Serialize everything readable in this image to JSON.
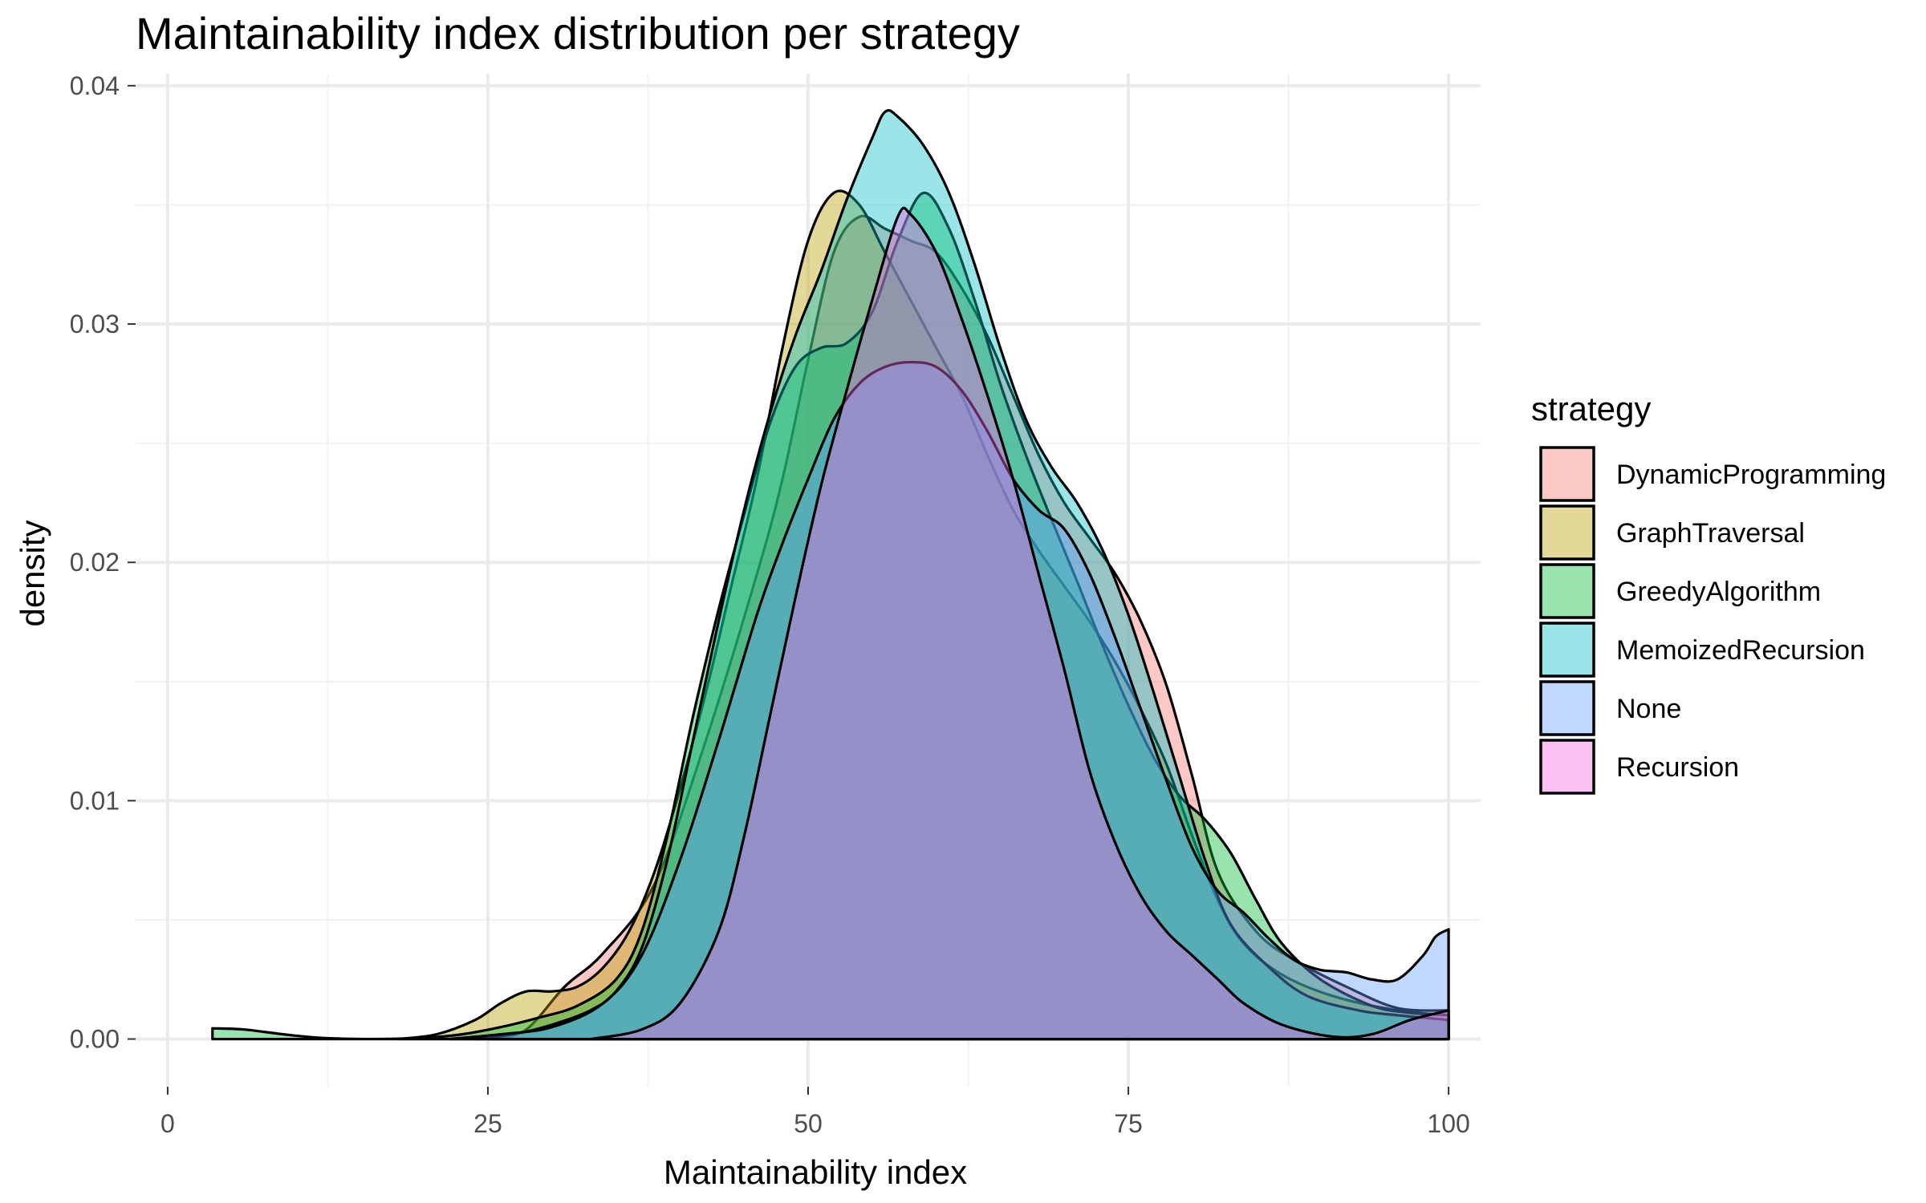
{
  "chart_data": {
    "type": "area",
    "title": "Maintainability index distribution per strategy",
    "xlabel": "Maintainability index",
    "ylabel": "density",
    "xlim": [
      -2.5,
      102.5
    ],
    "ylim": [
      -0.002,
      0.0405
    ],
    "x_ticks": [
      0,
      25,
      50,
      75,
      100
    ],
    "x_tick_labels": [
      "0",
      "25",
      "50",
      "75",
      "100"
    ],
    "y_ticks": [
      0,
      0.01,
      0.02,
      0.03,
      0.04
    ],
    "y_tick_labels": [
      "0.00",
      "0.01",
      "0.02",
      "0.03",
      "0.04"
    ],
    "grid": true,
    "legend": {
      "title": "strategy",
      "position": "right"
    },
    "series": [
      {
        "name": "DynamicProgramming",
        "color": "#F8766D",
        "points": [
          [
            25.4,
            0
          ],
          [
            28,
            0.0004
          ],
          [
            31,
            0.0022
          ],
          [
            34,
            0.0036
          ],
          [
            38,
            0.0065
          ],
          [
            42,
            0.0125
          ],
          [
            46,
            0.0195
          ],
          [
            48,
            0.0235
          ],
          [
            50,
            0.0285
          ],
          [
            52,
            0.033
          ],
          [
            54,
            0.0345
          ],
          [
            56,
            0.034
          ],
          [
            58,
            0.0335
          ],
          [
            60,
            0.033
          ],
          [
            62,
            0.0315
          ],
          [
            64,
            0.0295
          ],
          [
            66,
            0.027
          ],
          [
            68,
            0.0245
          ],
          [
            70,
            0.0225
          ],
          [
            72,
            0.021
          ],
          [
            74,
            0.0195
          ],
          [
            76,
            0.0175
          ],
          [
            78,
            0.0148
          ],
          [
            80,
            0.011
          ],
          [
            82,
            0.007
          ],
          [
            85,
            0.0045
          ],
          [
            88,
            0.0033
          ],
          [
            92,
            0.0022
          ],
          [
            96,
            0.0013
          ],
          [
            100,
            0.0012
          ]
        ]
      },
      {
        "name": "GraphTraversal",
        "color": "#B79F00",
        "points": [
          [
            18,
            0
          ],
          [
            21,
            0.0002
          ],
          [
            24,
            0.0008
          ],
          [
            26,
            0.0015
          ],
          [
            28,
            0.002
          ],
          [
            30,
            0.002
          ],
          [
            32,
            0.0022
          ],
          [
            34,
            0.003
          ],
          [
            36,
            0.0045
          ],
          [
            38,
            0.007
          ],
          [
            40,
            0.0105
          ],
          [
            42,
            0.0145
          ],
          [
            44,
            0.019
          ],
          [
            46,
            0.0235
          ],
          [
            48,
            0.029
          ],
          [
            50,
            0.0335
          ],
          [
            52,
            0.0355
          ],
          [
            54,
            0.035
          ],
          [
            56,
            0.033
          ],
          [
            58,
            0.031
          ],
          [
            60,
            0.029
          ],
          [
            62,
            0.027
          ],
          [
            64,
            0.0245
          ],
          [
            66,
            0.0222
          ],
          [
            68,
            0.0205
          ],
          [
            70,
            0.019
          ],
          [
            72,
            0.0175
          ],
          [
            74,
            0.0158
          ],
          [
            76,
            0.0138
          ],
          [
            78,
            0.0115
          ],
          [
            80,
            0.0085
          ],
          [
            82,
            0.0058
          ],
          [
            84,
            0.004
          ],
          [
            87,
            0.0027
          ],
          [
            91,
            0.0018
          ],
          [
            96,
            0.0012
          ],
          [
            100,
            0.001
          ]
        ]
      },
      {
        "name": "GreedyAlgorithm",
        "color": "#00BA38",
        "points": [
          [
            3.5,
            0.00045
          ],
          [
            6,
            0.0004
          ],
          [
            9,
            0.0002
          ],
          [
            12,
            5e-05
          ],
          [
            16,
            0
          ],
          [
            20,
            5e-05
          ],
          [
            23,
            0.0002
          ],
          [
            26,
            0.0005
          ],
          [
            29,
            0.0009
          ],
          [
            32,
            0.0014
          ],
          [
            35,
            0.0025
          ],
          [
            37,
            0.0045
          ],
          [
            39,
            0.0085
          ],
          [
            41,
            0.0135
          ],
          [
            43,
            0.018
          ],
          [
            45,
            0.022
          ],
          [
            47,
            0.0258
          ],
          [
            49,
            0.0282
          ],
          [
            51,
            0.029
          ],
          [
            53,
            0.0292
          ],
          [
            55,
            0.0305
          ],
          [
            57,
            0.0335
          ],
          [
            59,
            0.0355
          ],
          [
            61,
            0.034
          ],
          [
            63,
            0.031
          ],
          [
            65,
            0.0275
          ],
          [
            67,
            0.0245
          ],
          [
            69,
            0.0218
          ],
          [
            71,
            0.0192
          ],
          [
            73,
            0.0165
          ],
          [
            75,
            0.014
          ],
          [
            77,
            0.0118
          ],
          [
            79,
            0.0102
          ],
          [
            81,
            0.0092
          ],
          [
            83,
            0.0078
          ],
          [
            85,
            0.0058
          ],
          [
            87,
            0.004
          ],
          [
            90,
            0.0025
          ],
          [
            94,
            0.0014
          ],
          [
            97,
            0.0011
          ],
          [
            100,
            0.001
          ]
        ]
      },
      {
        "name": "MemoizedRecursion",
        "color": "#00BFC4",
        "points": [
          [
            24,
            0
          ],
          [
            27,
            0.0002
          ],
          [
            30,
            0.0006
          ],
          [
            33,
            0.0012
          ],
          [
            35,
            0.002
          ],
          [
            37,
            0.0038
          ],
          [
            39,
            0.0075
          ],
          [
            41,
            0.0125
          ],
          [
            43,
            0.0175
          ],
          [
            45,
            0.0222
          ],
          [
            47,
            0.0262
          ],
          [
            49,
            0.0295
          ],
          [
            51,
            0.0322
          ],
          [
            53,
            0.0352
          ],
          [
            55,
            0.0378
          ],
          [
            56,
            0.0389
          ],
          [
            57,
            0.0387
          ],
          [
            59,
            0.0375
          ],
          [
            61,
            0.0355
          ],
          [
            63,
            0.0325
          ],
          [
            65,
            0.029
          ],
          [
            67,
            0.026
          ],
          [
            69,
            0.024
          ],
          [
            71,
            0.0225
          ],
          [
            73,
            0.0205
          ],
          [
            75,
            0.0178
          ],
          [
            77,
            0.0145
          ],
          [
            79,
            0.011
          ],
          [
            81,
            0.0075
          ],
          [
            83,
            0.0048
          ],
          [
            86,
            0.003
          ],
          [
            89,
            0.0018
          ],
          [
            93,
            0.0012
          ],
          [
            96,
            0.001
          ],
          [
            100,
            0.0008
          ]
        ]
      },
      {
        "name": "None",
        "color": "#619CFF",
        "points": [
          [
            22,
            0
          ],
          [
            26,
            0.0002
          ],
          [
            30,
            0.0005
          ],
          [
            34,
            0.0015
          ],
          [
            37,
            0.0035
          ],
          [
            40,
            0.0075
          ],
          [
            43,
            0.0125
          ],
          [
            46,
            0.0178
          ],
          [
            48,
            0.0208
          ],
          [
            50,
            0.0235
          ],
          [
            52,
            0.026
          ],
          [
            54,
            0.0275
          ],
          [
            56,
            0.0282
          ],
          [
            58,
            0.0284
          ],
          [
            60,
            0.0282
          ],
          [
            62,
            0.0272
          ],
          [
            64,
            0.0255
          ],
          [
            66,
            0.0235
          ],
          [
            68,
            0.0222
          ],
          [
            70,
            0.0214
          ],
          [
            72,
            0.0195
          ],
          [
            74,
            0.0168
          ],
          [
            76,
            0.0138
          ],
          [
            78,
            0.0108
          ],
          [
            80,
            0.008
          ],
          [
            82,
            0.0062
          ],
          [
            84,
            0.0053
          ],
          [
            86,
            0.0042
          ],
          [
            88,
            0.0033
          ],
          [
            90,
            0.0029
          ],
          [
            92,
            0.0028
          ],
          [
            94,
            0.0025
          ],
          [
            96,
            0.0025
          ],
          [
            98,
            0.0035
          ],
          [
            99,
            0.0043
          ],
          [
            100,
            0.0046
          ]
        ]
      },
      {
        "name": "Recursion",
        "color": "#F564E3",
        "points": [
          [
            33,
            0
          ],
          [
            37,
            0.0004
          ],
          [
            40,
            0.0015
          ],
          [
            43,
            0.0045
          ],
          [
            45,
            0.0085
          ],
          [
            47,
            0.0135
          ],
          [
            49,
            0.0185
          ],
          [
            51,
            0.0232
          ],
          [
            53,
            0.0272
          ],
          [
            55,
            0.031
          ],
          [
            57,
            0.0345
          ],
          [
            58,
            0.0346
          ],
          [
            60,
            0.033
          ],
          [
            62,
            0.0302
          ],
          [
            64,
            0.027
          ],
          [
            66,
            0.0235
          ],
          [
            68,
            0.0195
          ],
          [
            70,
            0.0155
          ],
          [
            72,
            0.0112
          ],
          [
            74,
            0.0082
          ],
          [
            76,
            0.006
          ],
          [
            78,
            0.0045
          ],
          [
            80,
            0.0035
          ],
          [
            82,
            0.0025
          ],
          [
            84,
            0.0015
          ],
          [
            87,
            0.0006
          ],
          [
            91,
            0.0001
          ],
          [
            94,
            0.0002
          ],
          [
            97,
            0.0008
          ],
          [
            100,
            0.0012
          ]
        ]
      }
    ]
  }
}
